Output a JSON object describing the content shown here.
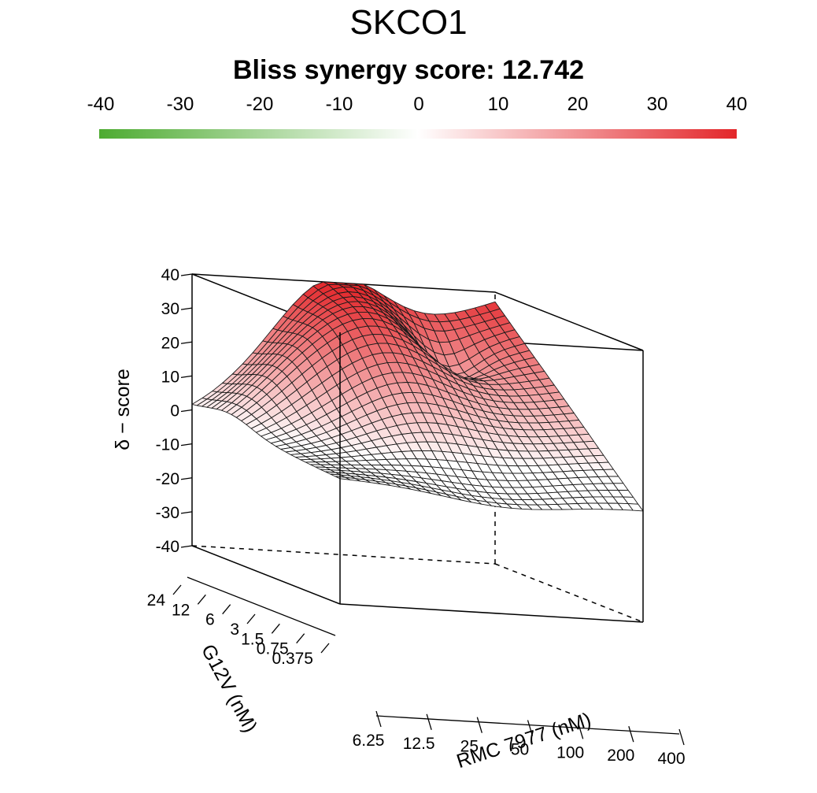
{
  "header": {
    "title": "SKCO1",
    "subtitle": "Bliss synergy score: 12.742"
  },
  "colorbar": {
    "min": -40,
    "max": 40,
    "ticks": [
      "-40",
      "-30",
      "-20",
      "-10",
      "0",
      "10",
      "20",
      "30",
      "40"
    ],
    "low_color": "#4dab31",
    "mid_color": "#ffffff",
    "high_color": "#e3262a"
  },
  "chart_data": {
    "type": "surface3d",
    "title": "SKCO1",
    "subtitle": "Bliss synergy score: 12.742",
    "zlabel": "δ − score",
    "zlim": [
      -40,
      40
    ],
    "z_ticks": [
      "40",
      "30",
      "20",
      "10",
      "0",
      "-10",
      "-20",
      "-30",
      "-40"
    ],
    "xlabel": "RMC 7977 (nM)",
    "x_ticks": [
      "6.25",
      "12.5",
      "25",
      "50",
      "100",
      "200",
      "400"
    ],
    "ylabel": "G12V (nM)",
    "y_ticks": [
      "0.375",
      "0.75",
      "1.5",
      "3",
      "6",
      "12",
      "24"
    ],
    "grid_resolution": 31,
    "surface_summary": {
      "corner_low_rmc_low_g12v": -3,
      "corner_high_rmc_low_g12v": -7,
      "corner_high_rmc_high_g12v": 37,
      "corner_low_rmc_high_g12v": 0,
      "peak_value": 40,
      "peak_location": "high G12V, mid RMC 7977"
    }
  }
}
